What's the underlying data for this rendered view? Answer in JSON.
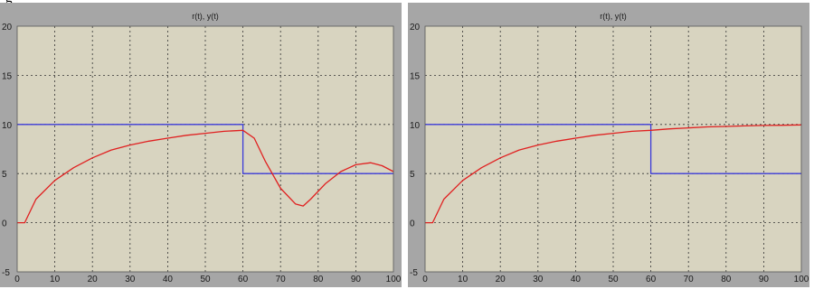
{
  "caption": "g",
  "chart_data": [
    {
      "type": "line",
      "title": "r(t), y(t)",
      "xlabel": "",
      "ylabel": "",
      "xlim": [
        0,
        100
      ],
      "ylim": [
        -5,
        20
      ],
      "xticks": [
        0,
        10,
        20,
        30,
        40,
        50,
        60,
        70,
        80,
        90,
        100
      ],
      "yticks": [
        -5,
        0,
        5,
        10,
        15,
        20
      ],
      "grid": true,
      "colors": {
        "background": "#d8d4c0",
        "frame": "#a6a6a6",
        "grid": "#333333",
        "reference": "#3b3bd8",
        "response": "#e02020"
      },
      "series": [
        {
          "x": [
            0,
            60,
            60,
            100
          ],
          "y": [
            10,
            10,
            5,
            5
          ]
        },
        {
          "x": [
            0,
            2,
            5,
            10,
            15,
            20,
            25,
            30,
            35,
            40,
            45,
            50,
            55,
            60,
            63,
            66,
            70,
            74,
            76,
            78,
            82,
            86,
            90,
            94,
            97,
            100
          ],
          "y": [
            0,
            0,
            2.4,
            4.3,
            5.6,
            6.6,
            7.4,
            7.9,
            8.3,
            8.6,
            8.9,
            9.1,
            9.3,
            9.4,
            8.6,
            6.2,
            3.5,
            1.9,
            1.7,
            2.4,
            4.0,
            5.2,
            5.9,
            6.1,
            5.8,
            5.2
          ]
        }
      ]
    },
    {
      "type": "line",
      "title": "r(t), y(t)",
      "xlabel": "",
      "ylabel": "",
      "xlim": [
        0,
        100
      ],
      "ylim": [
        -5,
        20
      ],
      "xticks": [
        0,
        10,
        20,
        30,
        40,
        50,
        60,
        70,
        80,
        90,
        100
      ],
      "yticks": [
        -5,
        0,
        5,
        10,
        15,
        20
      ],
      "grid": true,
      "colors": {
        "background": "#d8d4c0",
        "frame": "#a6a6a6",
        "grid": "#333333",
        "reference": "#3b3bd8",
        "response": "#e02020"
      },
      "series": [
        {
          "x": [
            0,
            60,
            60,
            100
          ],
          "y": [
            10,
            10,
            5,
            5
          ]
        },
        {
          "x": [
            0,
            2,
            5,
            10,
            15,
            20,
            25,
            30,
            35,
            40,
            45,
            50,
            55,
            60,
            65,
            70,
            75,
            80,
            85,
            90,
            95,
            100
          ],
          "y": [
            0,
            0,
            2.4,
            4.3,
            5.6,
            6.6,
            7.4,
            7.9,
            8.3,
            8.6,
            8.9,
            9.1,
            9.3,
            9.4,
            9.55,
            9.65,
            9.75,
            9.8,
            9.85,
            9.9,
            9.92,
            9.95
          ]
        }
      ]
    }
  ]
}
